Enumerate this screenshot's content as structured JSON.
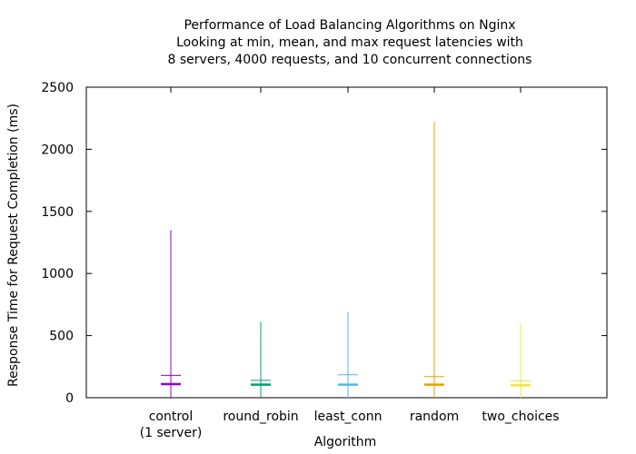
{
  "chart_data": {
    "type": "candlestick",
    "title": [
      "Performance of Load Balancing Algorithms on Nginx",
      "Looking at min, mean, and max request latencies with",
      "8 servers, 4000 requests, and 10 concurrent connections"
    ],
    "xlabel": "Algorithm",
    "ylabel": "Response Time for Request Completion (ms)",
    "ylim": [
      0,
      2500
    ],
    "yticks": [
      0,
      500,
      1000,
      1500,
      2000,
      2500
    ],
    "grid": false,
    "categories": [
      [
        "control",
        "(1 server)"
      ],
      [
        "round_robin"
      ],
      [
        "least_conn"
      ],
      [
        "random"
      ],
      [
        "two_choices"
      ]
    ],
    "series": [
      {
        "category_index": 0,
        "min": 0,
        "mean": 110,
        "max": 1350,
        "upper": 180,
        "color": "#9400d3"
      },
      {
        "category_index": 1,
        "min": 0,
        "mean": 105,
        "max": 610,
        "upper": 140,
        "color": "#009e73"
      },
      {
        "category_index": 2,
        "min": 0,
        "mean": 105,
        "max": 690,
        "upper": 185,
        "color": "#56b4e9"
      },
      {
        "category_index": 3,
        "min": 0,
        "mean": 105,
        "max": 2220,
        "upper": 170,
        "color": "#e69f00"
      },
      {
        "category_index": 4,
        "min": 0,
        "mean": 100,
        "max": 600,
        "upper": 135,
        "color": "#f0e442"
      }
    ]
  }
}
